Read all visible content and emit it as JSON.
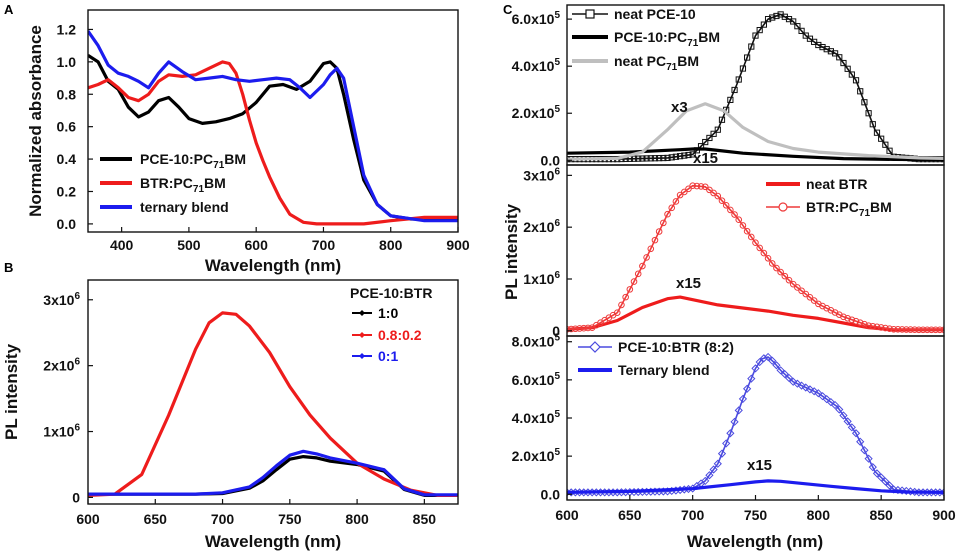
{
  "panel_letters": {
    "a": "A",
    "b": "B",
    "c": "C"
  },
  "annotations": {
    "x3": "x3",
    "x15": "x15"
  },
  "chart_data": [
    {
      "panel": "A",
      "type": "line",
      "xlabel": "Wavelength (nm)",
      "ylabel": "Normalized absorbance",
      "xlim": [
        350,
        900
      ],
      "ylim": [
        -0.05,
        1.32
      ],
      "xticks": [
        400,
        500,
        600,
        700,
        800,
        900
      ],
      "yticks": [
        0.0,
        0.2,
        0.4,
        0.6,
        0.8,
        1.0,
        1.2
      ],
      "ytick_labels": [
        "0.0",
        "0.2",
        "0.4",
        "0.6",
        "0.8",
        "1.0",
        "1.2"
      ],
      "series": [
        {
          "name": "PCE-10:PC71BM",
          "label_main": "PCE-10:PC",
          "label_sub": "71",
          "label_tail": "BM",
          "color": "#000000",
          "x": [
            350,
            365,
            380,
            395,
            410,
            425,
            440,
            455,
            470,
            485,
            500,
            520,
            540,
            560,
            580,
            600,
            620,
            640,
            660,
            680,
            700,
            710,
            720,
            730,
            745,
            760,
            780,
            800,
            830,
            860,
            900
          ],
          "y": [
            1.04,
            1.0,
            0.88,
            0.83,
            0.72,
            0.66,
            0.69,
            0.76,
            0.78,
            0.72,
            0.65,
            0.62,
            0.63,
            0.65,
            0.68,
            0.75,
            0.85,
            0.86,
            0.83,
            0.88,
            0.99,
            1.0,
            0.96,
            0.8,
            0.52,
            0.27,
            0.12,
            0.05,
            0.03,
            0.03,
            0.03
          ]
        },
        {
          "name": "BTR:PC71BM",
          "label_main": "BTR:PC",
          "label_sub": "71",
          "label_tail": "BM",
          "color": "#ee1c1c",
          "x": [
            350,
            365,
            380,
            395,
            410,
            425,
            440,
            455,
            470,
            490,
            510,
            530,
            550,
            560,
            570,
            580,
            590,
            600,
            610,
            620,
            635,
            650,
            670,
            690,
            720,
            760,
            800,
            850,
            900
          ],
          "y": [
            0.84,
            0.86,
            0.89,
            0.84,
            0.78,
            0.76,
            0.8,
            0.88,
            0.92,
            0.91,
            0.92,
            0.96,
            1.0,
            0.99,
            0.93,
            0.8,
            0.64,
            0.5,
            0.39,
            0.29,
            0.16,
            0.06,
            0.01,
            0.0,
            0.0,
            0.0,
            0.02,
            0.04,
            0.04
          ]
        },
        {
          "name": "ternary blend",
          "color": "#1c1cee",
          "x": [
            350,
            365,
            380,
            395,
            410,
            425,
            440,
            455,
            470,
            490,
            510,
            530,
            550,
            570,
            590,
            610,
            630,
            650,
            665,
            680,
            700,
            710,
            720,
            730,
            745,
            760,
            780,
            800,
            850,
            900
          ],
          "y": [
            1.19,
            1.1,
            0.98,
            0.93,
            0.91,
            0.88,
            0.84,
            0.93,
            1.0,
            0.94,
            0.89,
            0.9,
            0.91,
            0.89,
            0.88,
            0.89,
            0.9,
            0.89,
            0.84,
            0.78,
            0.86,
            0.92,
            0.96,
            0.9,
            0.6,
            0.3,
            0.12,
            0.05,
            0.02,
            0.02
          ]
        }
      ]
    },
    {
      "panel": "B",
      "type": "line",
      "xlabel": "Wavelength (nm)",
      "ylabel": "PL intensity",
      "xlim": [
        600,
        875
      ],
      "ylim": [
        -0.1,
        3.3
      ],
      "y_unit_exponent": 6,
      "xticks": [
        600,
        650,
        700,
        750,
        800,
        850
      ],
      "yticks": [
        0,
        1,
        2,
        3
      ],
      "ytick_labels": [
        {
          "main": "0",
          "exp": ""
        },
        {
          "main": "1x10",
          "exp": "6"
        },
        {
          "main": "2x10",
          "exp": "6"
        },
        {
          "main": "3x10",
          "exp": "6"
        }
      ],
      "legend_title": "PCE-10:BTR",
      "series": [
        {
          "name": "1:0",
          "color": "#000000",
          "x": [
            600,
            650,
            680,
            700,
            720,
            730,
            740,
            750,
            760,
            770,
            780,
            800,
            820,
            835,
            850,
            875
          ],
          "y": [
            0.05,
            0.05,
            0.05,
            0.06,
            0.14,
            0.25,
            0.42,
            0.58,
            0.62,
            0.6,
            0.55,
            0.5,
            0.4,
            0.12,
            0.03,
            0.03
          ]
        },
        {
          "name": "0.8:0.2",
          "color": "#ee1c1c",
          "x": [
            600,
            620,
            640,
            660,
            680,
            690,
            700,
            710,
            720,
            735,
            750,
            765,
            780,
            800,
            820,
            840,
            860,
            875
          ],
          "y": [
            0.03,
            0.05,
            0.35,
            1.25,
            2.25,
            2.65,
            2.8,
            2.78,
            2.6,
            2.2,
            1.68,
            1.25,
            0.9,
            0.52,
            0.28,
            0.11,
            0.03,
            0.03
          ]
        },
        {
          "name": "0:1",
          "color": "#1c1cee",
          "x": [
            600,
            650,
            680,
            700,
            720,
            730,
            740,
            750,
            760,
            770,
            780,
            800,
            820,
            835,
            850,
            875
          ],
          "y": [
            0.05,
            0.05,
            0.05,
            0.07,
            0.16,
            0.3,
            0.48,
            0.64,
            0.7,
            0.66,
            0.6,
            0.52,
            0.42,
            0.13,
            0.04,
            0.04
          ]
        }
      ]
    },
    {
      "panel": "C-top",
      "type": "line",
      "ylabel": "PL intensity",
      "xlim": [
        600,
        900
      ],
      "ylim": [
        -0.2,
        6.6
      ],
      "y_unit_exponent": 5,
      "yticks": [
        0,
        2,
        4,
        6
      ],
      "ytick_labels": [
        {
          "main": "0.0",
          "exp": ""
        },
        {
          "main": "2.0x10",
          "exp": "5"
        },
        {
          "main": "4.0x10",
          "exp": "5"
        },
        {
          "main": "6.0x10",
          "exp": "5"
        }
      ],
      "series": [
        {
          "name": "neat PCE-10",
          "color": "#111111",
          "marker": "open-square",
          "x": [
            600,
            640,
            680,
            700,
            720,
            735,
            750,
            760,
            770,
            780,
            790,
            800,
            815,
            830,
            845,
            860,
            880,
            900
          ],
          "y": [
            0.05,
            0.05,
            0.1,
            0.25,
            1.3,
            3.2,
            5.3,
            6.0,
            6.2,
            5.9,
            5.3,
            4.9,
            4.5,
            3.4,
            1.3,
            0.15,
            0.05,
            0.05
          ]
        },
        {
          "name": "PCE-10:PC71BM",
          "label_main": "PCE-10:PC",
          "label_sub": "71",
          "label_tail": "BM",
          "color": "#000000",
          "x": [
            600,
            650,
            690,
            700,
            710,
            720,
            740,
            780,
            820,
            860,
            900
          ],
          "y": [
            0.3,
            0.35,
            0.45,
            0.48,
            0.48,
            0.42,
            0.3,
            0.17,
            0.07,
            0.04,
            0.03
          ]
        },
        {
          "name": "neat PC71BM",
          "label_main": "neat PC",
          "label_sub": "71",
          "label_tail": "BM",
          "color": "#bfbfbf",
          "x": [
            600,
            640,
            660,
            680,
            695,
            710,
            725,
            740,
            760,
            780,
            800,
            840,
            880,
            900
          ],
          "y": [
            0.05,
            0.08,
            0.35,
            1.3,
            2.1,
            2.4,
            2.1,
            1.4,
            0.8,
            0.5,
            0.35,
            0.2,
            0.1,
            0.08
          ]
        }
      ],
      "annotations": [
        "x3",
        "x15"
      ]
    },
    {
      "panel": "C-middle",
      "type": "line",
      "xlim": [
        600,
        900
      ],
      "ylim": [
        -0.1,
        3.2
      ],
      "y_unit_exponent": 6,
      "yticks": [
        0,
        1,
        2,
        3
      ],
      "ytick_labels": [
        {
          "main": "0",
          "exp": ""
        },
        {
          "main": "1x10",
          "exp": "6"
        },
        {
          "main": "2x10",
          "exp": "6"
        },
        {
          "main": "3x10",
          "exp": "6"
        }
      ],
      "series": [
        {
          "name": "neat BTR",
          "color": "#ee1c1c",
          "x": [
            600,
            620,
            640,
            660,
            680,
            690,
            700,
            720,
            740,
            760,
            780,
            800,
            820,
            840,
            860,
            880,
            900
          ],
          "y": [
            0.03,
            0.06,
            0.2,
            0.45,
            0.62,
            0.65,
            0.6,
            0.5,
            0.44,
            0.38,
            0.3,
            0.24,
            0.15,
            0.06,
            0.02,
            0.02,
            0.02
          ]
        },
        {
          "name": "BTR:PC71BM",
          "label_main": "BTR:PC",
          "label_sub": "71",
          "label_tail": "BM",
          "color": "#ee3a3a",
          "marker": "open-circle",
          "x": [
            600,
            620,
            640,
            660,
            680,
            690,
            700,
            710,
            720,
            735,
            750,
            765,
            780,
            800,
            820,
            840,
            860,
            880,
            900
          ],
          "y": [
            0.03,
            0.06,
            0.35,
            1.25,
            2.25,
            2.62,
            2.8,
            2.78,
            2.6,
            2.2,
            1.7,
            1.25,
            0.9,
            0.52,
            0.27,
            0.1,
            0.03,
            0.02,
            0.02
          ]
        }
      ],
      "annotations": [
        "x15"
      ]
    },
    {
      "panel": "C-bottom",
      "type": "line",
      "xlabel": "Wavelength (nm)",
      "xlim": [
        600,
        900
      ],
      "ylim": [
        -0.3,
        8.3
      ],
      "y_unit_exponent": 5,
      "xticks": [
        600,
        650,
        700,
        750,
        800,
        850,
        900
      ],
      "yticks": [
        0,
        2,
        4,
        6,
        8
      ],
      "ytick_labels": [
        {
          "main": "0.0",
          "exp": ""
        },
        {
          "main": "2.0x10",
          "exp": "5"
        },
        {
          "main": "4.0x10",
          "exp": "5"
        },
        {
          "main": "6.0x10",
          "exp": "5"
        },
        {
          "main": "8.0x10",
          "exp": "5"
        }
      ],
      "series": [
        {
          "name": "PCE-10:BTR (8:2)",
          "color": "#4a4adf",
          "marker": "open-diamond",
          "x": [
            600,
            640,
            680,
            700,
            710,
            720,
            730,
            740,
            750,
            755,
            760,
            765,
            770,
            780,
            790,
            800,
            815,
            830,
            845,
            860,
            880,
            900
          ],
          "y": [
            0.1,
            0.1,
            0.15,
            0.3,
            0.7,
            1.6,
            3.2,
            5.0,
            6.6,
            7.1,
            7.2,
            6.9,
            6.5,
            5.9,
            5.6,
            5.3,
            4.6,
            3.2,
            1.2,
            0.25,
            0.1,
            0.1
          ]
        },
        {
          "name": "Ternary blend",
          "color": "#1c1cee",
          "x": [
            600,
            650,
            700,
            730,
            750,
            760,
            770,
            790,
            810,
            830,
            850,
            870,
            900
          ],
          "y": [
            0.1,
            0.15,
            0.3,
            0.5,
            0.65,
            0.7,
            0.68,
            0.55,
            0.42,
            0.3,
            0.18,
            0.12,
            0.1
          ]
        }
      ],
      "annotations": [
        "x15"
      ]
    }
  ]
}
